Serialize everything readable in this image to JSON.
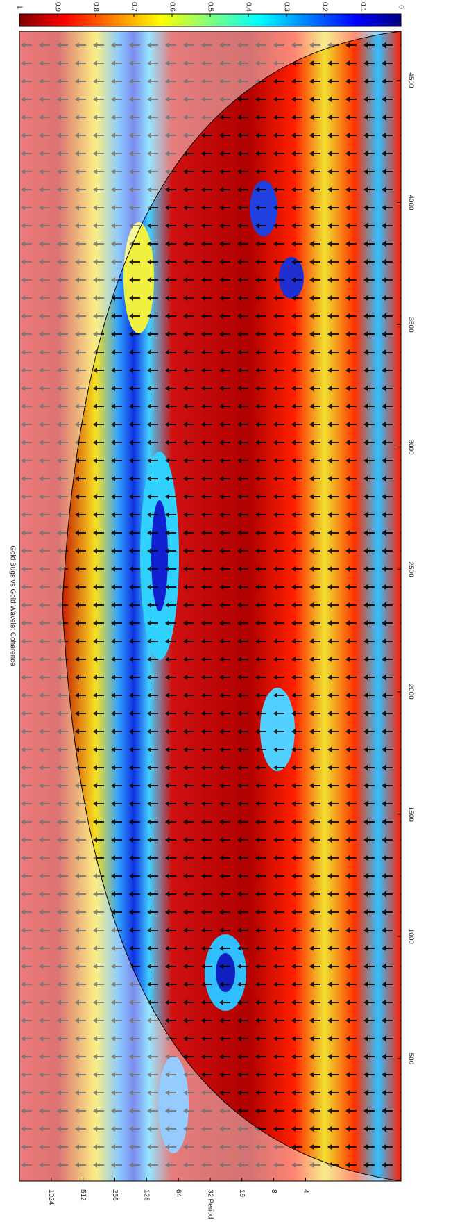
{
  "chart_data": {
    "type": "heatmap",
    "title": "Gold Bugs vs Gold Wavelet Coherence",
    "ylabel": "Period",
    "xlim": [
      0,
      4700
    ],
    "xticks": [
      500,
      1000,
      1500,
      2000,
      2500,
      3000,
      3500,
      4000,
      4500
    ],
    "ylim": [
      0.5,
      2048
    ],
    "ylog": true,
    "yticks": [
      4,
      8,
      16,
      32,
      64,
      128,
      256,
      512,
      1024
    ],
    "colorbar": {
      "clim": [
        0,
        1
      ],
      "colormap": "jet",
      "ticks": [
        0,
        0.1,
        0.2,
        0.3,
        0.4,
        0.5,
        0.6,
        0.7,
        0.8,
        0.9,
        1
      ]
    }
  }
}
